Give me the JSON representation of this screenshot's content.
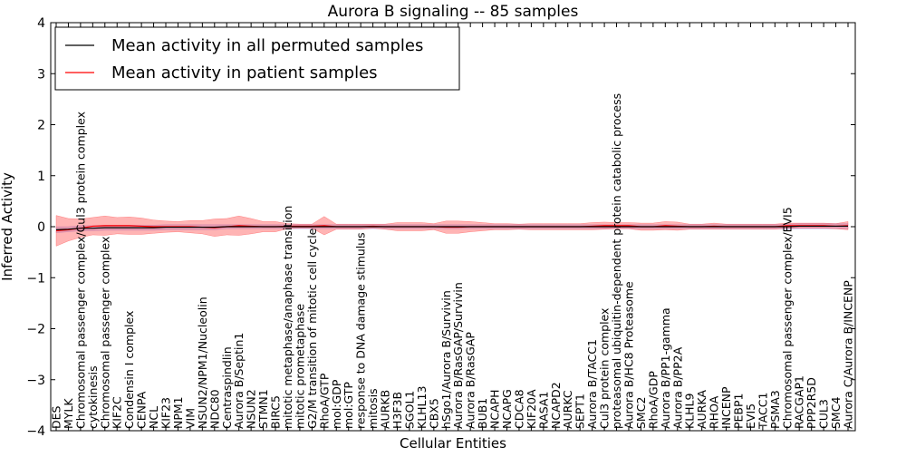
{
  "chart_data": {
    "type": "line",
    "title": "Aurora B signaling -- 85 samples",
    "xlabel": "Cellular Entities",
    "ylabel": "Inferred Activity",
    "ylim": [
      -4,
      4
    ],
    "yticks": [
      "4",
      "3",
      "2",
      "1",
      "0",
      "−1",
      "−2",
      "−3",
      "−4"
    ],
    "legend_position": "top-left",
    "grid": false,
    "categories": [
      "DES",
      "MYLK",
      "Chromosomal passenger complex/Cul3 protein complex",
      "cytokinesis",
      "Chromosomal passenger complex",
      "KIF2C",
      "Condensin I complex",
      "CENPA",
      "NCL",
      "KIF23",
      "NPM1",
      "VIM",
      "NSUN2/NPM1/Nucleolin",
      "NDC80",
      "Centraspindlin",
      "Aurora B/Septin1",
      "NSUN2",
      "STMN1",
      "BIRC5",
      "mitotic metaphase/anaphase transition",
      "mitotic prometaphase",
      "G2/M transition of mitotic cell cycle",
      "RhoA/GTP",
      "mol:GDP",
      "mol:GTP",
      "response to DNA damage stimulus",
      "mitosis",
      "AURKB",
      "H3F3B",
      "SGOL1",
      "KLHL13",
      "CBX5",
      "hSgo1/Aurora B/Survivin",
      "Aurora B/RasGAP/Survivin",
      "Aurora B/RasGAP",
      "BUB1",
      "NCAPH",
      "NCAPG",
      "CDCA8",
      "KIF20A",
      "RASA1",
      "NCAPD2",
      "AURKC",
      "SEPT1",
      "Aurora B/TACC1",
      "Cul3 protein complex",
      "proteasomal ubiquitin-dependent protein catabolic process",
      "Aurora B/HC8 Proteasome",
      "SMC2",
      "RhoA/GDP",
      "Aurora B/PP1-gamma",
      "Aurora B/PP2A",
      "KLHL9",
      "AURKA",
      "RHOA",
      "INCENP",
      "PEBP1",
      "EVI5",
      "TACC1",
      "PSMA3",
      "Chromosomal passenger complex/EVI5",
      "RACGAP1",
      "PPP2R5D",
      "CUL3",
      "SMC4",
      "Aurora C/Aurora B/INCENP"
    ],
    "series": [
      {
        "name": "Mean activity in all permuted samples",
        "color": "#000000",
        "band_color": "#9999ee",
        "values": [
          -0.06,
          -0.05,
          -0.03,
          -0.03,
          -0.02,
          -0.02,
          -0.02,
          -0.02,
          -0.02,
          -0.01,
          -0.01,
          -0.01,
          -0.01,
          -0.01,
          0,
          0,
          0,
          0,
          0,
          0,
          0,
          0,
          0,
          0,
          0,
          0,
          0,
          0,
          0,
          0,
          0,
          0,
          0,
          0,
          0,
          0,
          0,
          0,
          0,
          0,
          0,
          0,
          0,
          0,
          0,
          0,
          0,
          0,
          0,
          0,
          0,
          0,
          0,
          0,
          0,
          0,
          0,
          0,
          0,
          0,
          0,
          0.01,
          0.01,
          0.01,
          0.01,
          0.01
        ],
        "spread": [
          0.06,
          0.05,
          0.05,
          0.05,
          0.05,
          0.05,
          0.05,
          0.05,
          0.05,
          0.05,
          0.05,
          0.05,
          0.05,
          0.05,
          0.04,
          0.04,
          0.04,
          0.04,
          0.04,
          0.04,
          0.04,
          0.04,
          0.04,
          0.04,
          0.04,
          0.04,
          0.04,
          0.04,
          0.04,
          0.04,
          0.04,
          0.04,
          0.04,
          0.04,
          0.04,
          0.04,
          0.04,
          0.04,
          0.04,
          0.04,
          0.04,
          0.04,
          0.04,
          0.04,
          0.04,
          0.04,
          0.04,
          0.04,
          0.04,
          0.04,
          0.04,
          0.04,
          0.04,
          0.04,
          0.04,
          0.04,
          0.04,
          0.04,
          0.04,
          0.04,
          0.05,
          0.05,
          0.05,
          0.05,
          0.05,
          0.05
        ]
      },
      {
        "name": "Mean activity in patient samples",
        "color": "#ff0000",
        "band_color": "#ff4444",
        "values": [
          -0.08,
          -0.06,
          -0.03,
          0.01,
          0.02,
          0.02,
          0.02,
          0.01,
          0,
          0,
          0,
          0,
          -0.01,
          -0.02,
          0,
          0.02,
          0.01,
          0,
          0,
          0.01,
          0.01,
          0.01,
          0.02,
          0,
          0,
          0,
          0.01,
          0,
          0,
          0,
          0,
          0,
          -0.01,
          -0.01,
          0,
          0,
          0,
          0,
          0,
          0,
          0,
          0,
          0,
          0,
          0.01,
          0.02,
          0.02,
          0.02,
          0,
          0,
          0.02,
          0.01,
          0,
          0,
          0.01,
          0,
          0,
          0,
          0,
          0,
          0.02,
          0.02,
          0.02,
          0.02,
          0.01,
          0.02
        ],
        "spread": [
          0.3,
          0.22,
          0.18,
          0.17,
          0.19,
          0.16,
          0.17,
          0.16,
          0.13,
          0.11,
          0.1,
          0.12,
          0.13,
          0.17,
          0.16,
          0.19,
          0.15,
          0.1,
          0.1,
          0.05,
          0.04,
          0.04,
          0.18,
          0.05,
          0.05,
          0.05,
          0.04,
          0.05,
          0.08,
          0.08,
          0.08,
          0.06,
          0.12,
          0.12,
          0.1,
          0.08,
          0.06,
          0.06,
          0.05,
          0.06,
          0.06,
          0.06,
          0.06,
          0.06,
          0.07,
          0.07,
          0.06,
          0.06,
          0.07,
          0.07,
          0.08,
          0.08,
          0.05,
          0.05,
          0.06,
          0.05,
          0.05,
          0.05,
          0.05,
          0.05,
          0.05,
          0.05,
          0.05,
          0.05,
          0.05,
          0.08
        ]
      }
    ]
  }
}
